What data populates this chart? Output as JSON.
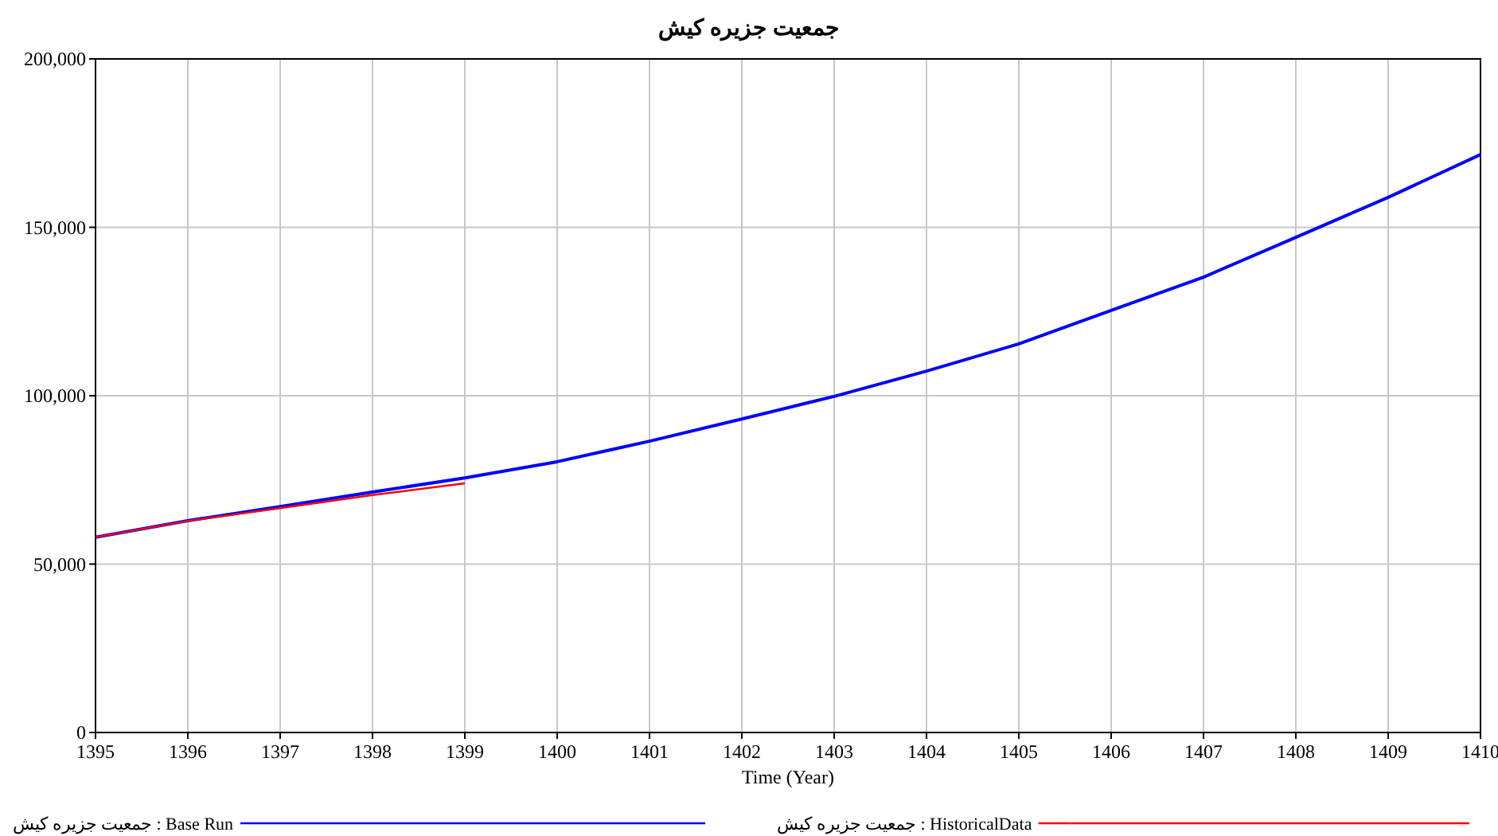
{
  "chart_data": {
    "type": "line",
    "title": "جمعیت جزیره کیش",
    "xlabel": "Time (Year)",
    "x": [
      1395,
      1396,
      1397,
      1398,
      1399,
      1400,
      1401,
      1402,
      1403,
      1404,
      1405,
      1406,
      1407,
      1408,
      1409,
      1410
    ],
    "series": [
      {
        "name": "جمعیت جزیره کیش : Base Run",
        "color": "#0000ff",
        "values": [
          58000,
          62900,
          67100,
          71400,
          75600,
          80400,
          86500,
          93100,
          99800,
          107300,
          115400,
          125300,
          135200,
          147000,
          158900,
          171600
        ]
      },
      {
        "name": "جمعیت جزیره کیش : HistoricalData",
        "color": "#ff0000",
        "x": [
          1395,
          1396,
          1397,
          1398,
          1399
        ],
        "values": [
          58000,
          62800,
          66600,
          70500,
          74000
        ]
      }
    ],
    "xlim": [
      1395,
      1410
    ],
    "xticks": [
      1395,
      1396,
      1397,
      1398,
      1399,
      1400,
      1401,
      1402,
      1403,
      1404,
      1405,
      1406,
      1407,
      1408,
      1409,
      1410
    ],
    "ylim": [
      0,
      200000
    ],
    "yticks": [
      {
        "value": 0,
        "label": "0"
      },
      {
        "value": 50000,
        "label": "50,000"
      },
      {
        "value": 100000,
        "label": "100,000"
      },
      {
        "value": 150000,
        "label": "150,000"
      },
      {
        "value": 200000,
        "label": "200,000"
      }
    ],
    "grid": true,
    "legend": "bottom",
    "line_style": "solid",
    "marker": "none"
  }
}
